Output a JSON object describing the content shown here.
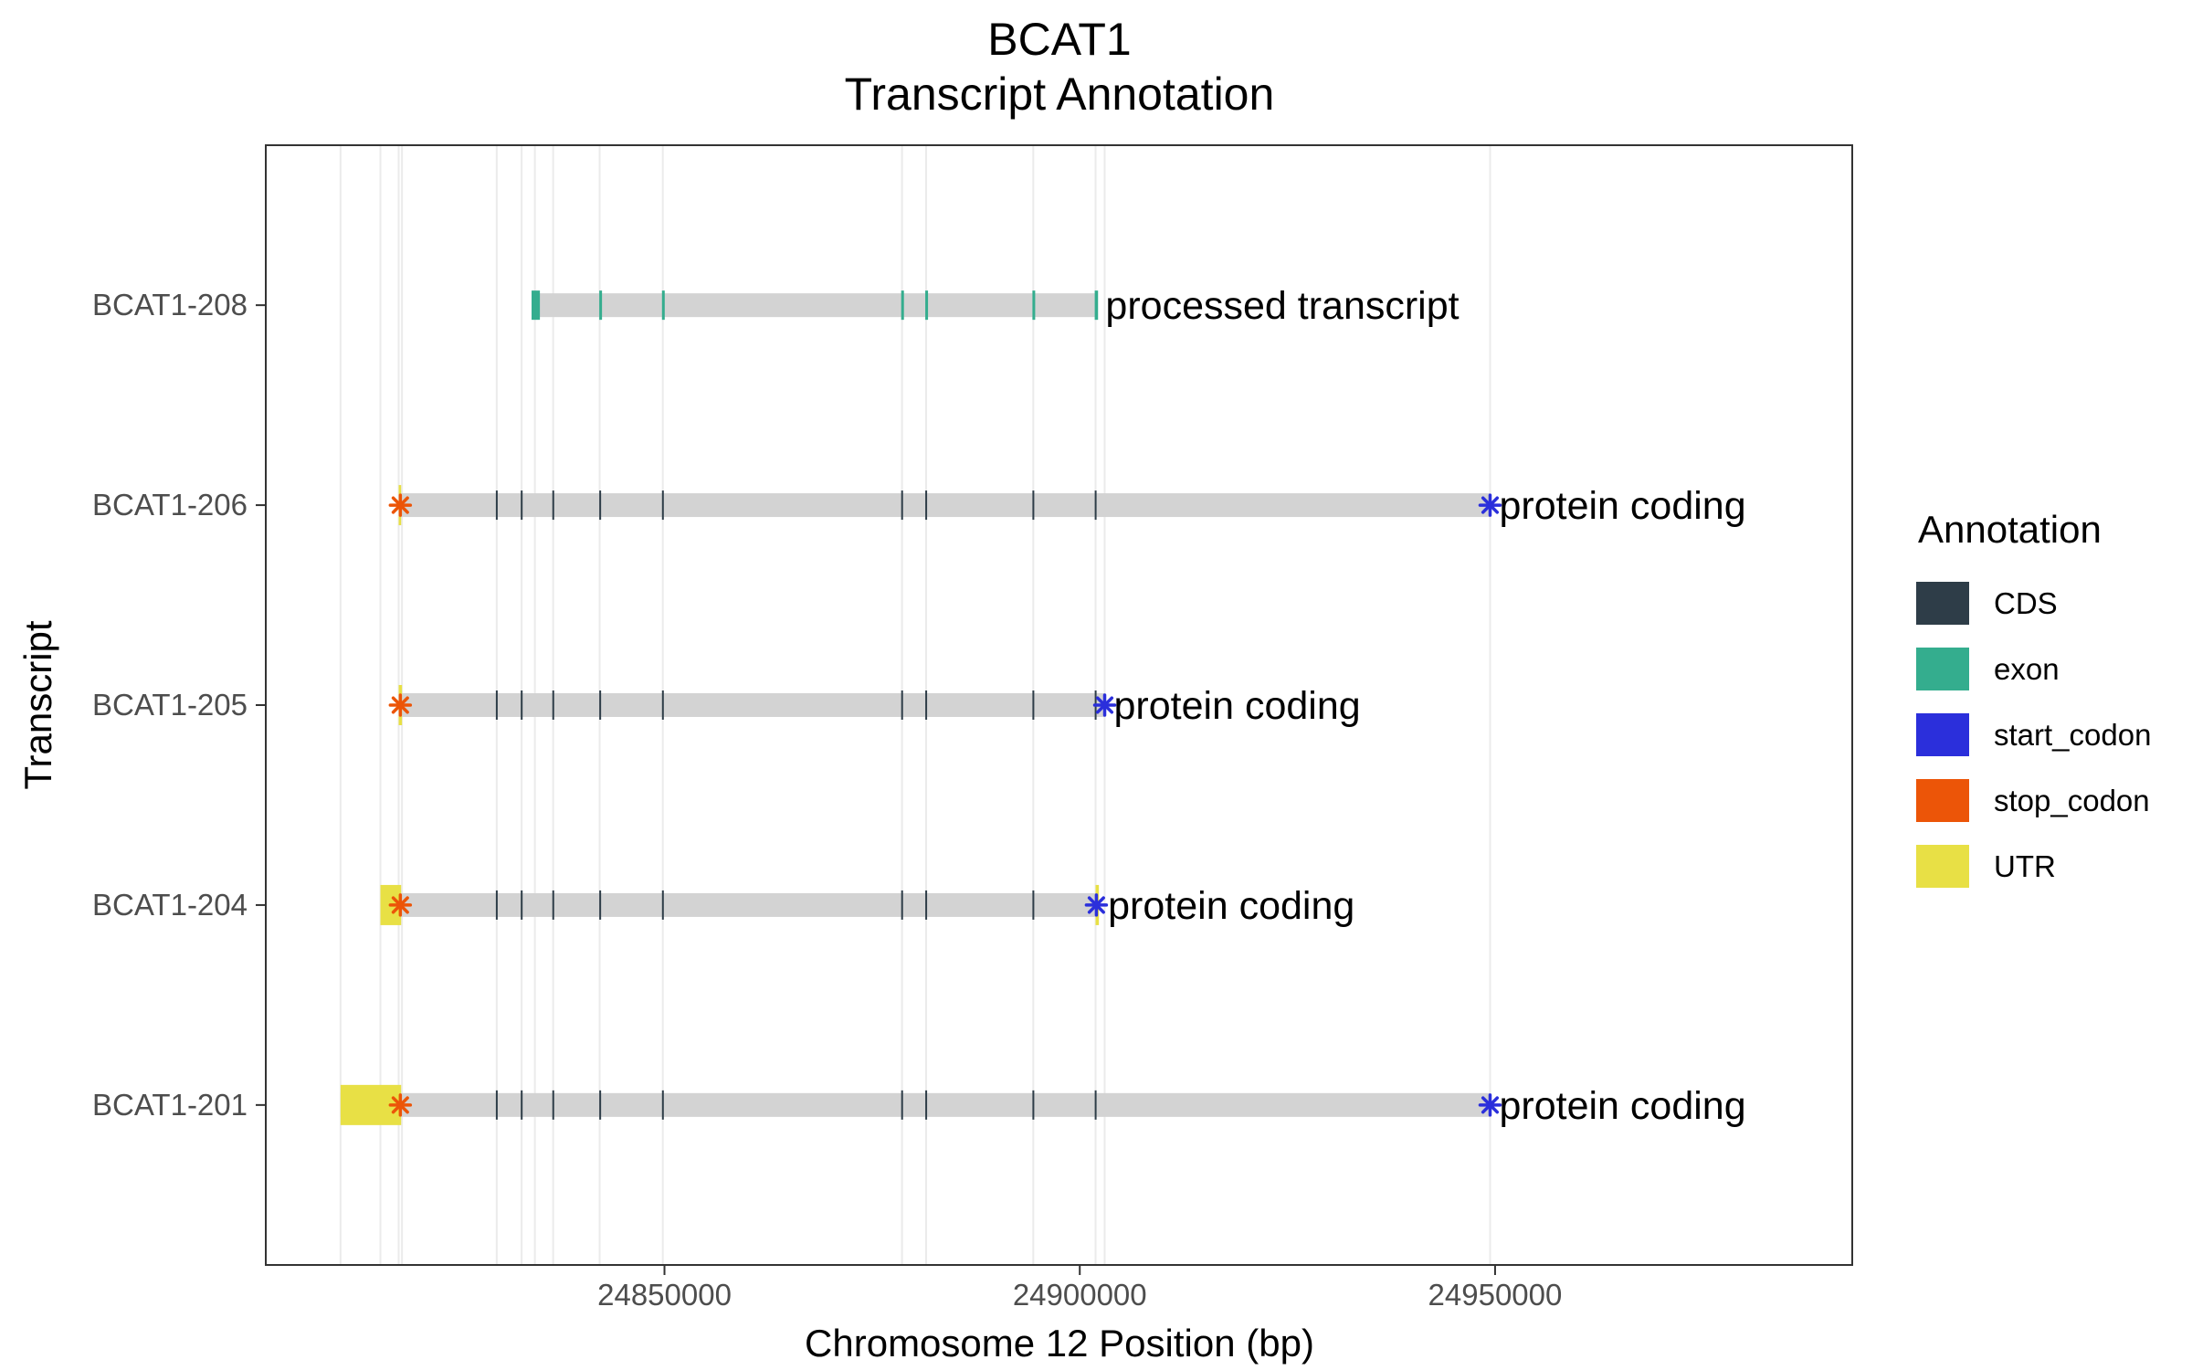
{
  "chart_data": {
    "type": "gene_track",
    "title": "BCAT1",
    "subtitle": "Transcript Annotation",
    "xlabel": "Chromosome 12 Position (bp)",
    "ylabel": "Transcript",
    "xlim": [
      24802000,
      24993000
    ],
    "x_ticks": [
      24850000,
      24900000,
      24950000
    ],
    "x_tick_labels": [
      "24850000",
      "24900000",
      "24950000"
    ],
    "grid": true,
    "legend_position": "right",
    "legend": {
      "title": "Annotation",
      "entries": [
        {
          "label": "CDS",
          "color": "#2e3d48"
        },
        {
          "label": "exon",
          "color": "#34ad8e"
        },
        {
          "label": "start_codon",
          "color": "#2b2fdb"
        },
        {
          "label": "stop_codon",
          "color": "#ec5508"
        },
        {
          "label": "UTR",
          "color": "#e8e045"
        }
      ]
    },
    "intron_color": "#d3d3d3",
    "feature_positions": [
      24811000,
      24815800,
      24818000,
      24818400,
      24829800,
      24832800,
      24834400,
      24836600,
      24842200,
      24849800,
      24878600,
      24881500,
      24894400,
      24901900,
      24903000,
      24949400
    ],
    "transcripts": [
      {
        "name": "BCAT1-208",
        "type_label": "processed transcript",
        "start": 24834200,
        "end": 24902000,
        "features": [
          {
            "type": "exon",
            "start": 24834000,
            "end": 24835000
          },
          {
            "type": "exon",
            "start": 24842150,
            "end": 24842350
          },
          {
            "type": "exon",
            "start": 24849700,
            "end": 24849900
          },
          {
            "type": "exon",
            "start": 24878500,
            "end": 24878700
          },
          {
            "type": "exon",
            "start": 24881400,
            "end": 24881600
          },
          {
            "type": "exon",
            "start": 24894300,
            "end": 24894500
          },
          {
            "type": "exon",
            "start": 24901800,
            "end": 24902200
          }
        ],
        "start_codon": null,
        "stop_codon": null
      },
      {
        "name": "BCAT1-206",
        "type_label": "protein coding",
        "start": 24818000,
        "end": 24949400,
        "features": [
          {
            "type": "UTR",
            "start": 24818000,
            "end": 24818300
          },
          {
            "type": "CDS",
            "start": 24829700,
            "end": 24829900
          },
          {
            "type": "CDS",
            "start": 24832700,
            "end": 24832900
          },
          {
            "type": "CDS",
            "start": 24836500,
            "end": 24836700
          },
          {
            "type": "CDS",
            "start": 24842150,
            "end": 24842350
          },
          {
            "type": "CDS",
            "start": 24849700,
            "end": 24849900
          },
          {
            "type": "CDS",
            "start": 24878500,
            "end": 24878700
          },
          {
            "type": "CDS",
            "start": 24881400,
            "end": 24881600
          },
          {
            "type": "CDS",
            "start": 24894300,
            "end": 24894500
          },
          {
            "type": "CDS",
            "start": 24901800,
            "end": 24902000
          }
        ],
        "start_codon": 24949400,
        "stop_codon": 24818200
      },
      {
        "name": "BCAT1-205",
        "type_label": "protein coding",
        "start": 24818000,
        "end": 24903000,
        "features": [
          {
            "type": "UTR",
            "start": 24818000,
            "end": 24818400
          },
          {
            "type": "CDS",
            "start": 24829700,
            "end": 24829900
          },
          {
            "type": "CDS",
            "start": 24832700,
            "end": 24832900
          },
          {
            "type": "CDS",
            "start": 24836500,
            "end": 24836700
          },
          {
            "type": "CDS",
            "start": 24842150,
            "end": 24842350
          },
          {
            "type": "CDS",
            "start": 24849700,
            "end": 24849900
          },
          {
            "type": "CDS",
            "start": 24878500,
            "end": 24878700
          },
          {
            "type": "CDS",
            "start": 24881400,
            "end": 24881600
          },
          {
            "type": "CDS",
            "start": 24894300,
            "end": 24894500
          },
          {
            "type": "CDS",
            "start": 24901800,
            "end": 24902000
          }
        ],
        "start_codon": 24903000,
        "stop_codon": 24818200
      },
      {
        "name": "BCAT1-204",
        "type_label": "protein coding",
        "start": 24815800,
        "end": 24902300,
        "features": [
          {
            "type": "UTR",
            "start": 24815800,
            "end": 24818300
          },
          {
            "type": "UTR",
            "start": 24901900,
            "end": 24902300
          },
          {
            "type": "CDS",
            "start": 24829700,
            "end": 24829900
          },
          {
            "type": "CDS",
            "start": 24832700,
            "end": 24832900
          },
          {
            "type": "CDS",
            "start": 24836500,
            "end": 24836700
          },
          {
            "type": "CDS",
            "start": 24842150,
            "end": 24842350
          },
          {
            "type": "CDS",
            "start": 24849700,
            "end": 24849900
          },
          {
            "type": "CDS",
            "start": 24878500,
            "end": 24878700
          },
          {
            "type": "CDS",
            "start": 24881400,
            "end": 24881600
          },
          {
            "type": "CDS",
            "start": 24894300,
            "end": 24894500
          }
        ],
        "start_codon": 24902000,
        "stop_codon": 24818200
      },
      {
        "name": "BCAT1-201",
        "type_label": "protein coding",
        "start": 24811000,
        "end": 24949400,
        "features": [
          {
            "type": "UTR",
            "start": 24811000,
            "end": 24818300
          },
          {
            "type": "CDS",
            "start": 24829700,
            "end": 24829900
          },
          {
            "type": "CDS",
            "start": 24832700,
            "end": 24832900
          },
          {
            "type": "CDS",
            "start": 24836500,
            "end": 24836700
          },
          {
            "type": "CDS",
            "start": 24842150,
            "end": 24842350
          },
          {
            "type": "CDS",
            "start": 24849700,
            "end": 24849900
          },
          {
            "type": "CDS",
            "start": 24878500,
            "end": 24878700
          },
          {
            "type": "CDS",
            "start": 24881400,
            "end": 24881600
          },
          {
            "type": "CDS",
            "start": 24894300,
            "end": 24894500
          },
          {
            "type": "CDS",
            "start": 24901800,
            "end": 24902000
          }
        ],
        "start_codon": 24949400,
        "stop_codon": 24818200
      }
    ]
  }
}
